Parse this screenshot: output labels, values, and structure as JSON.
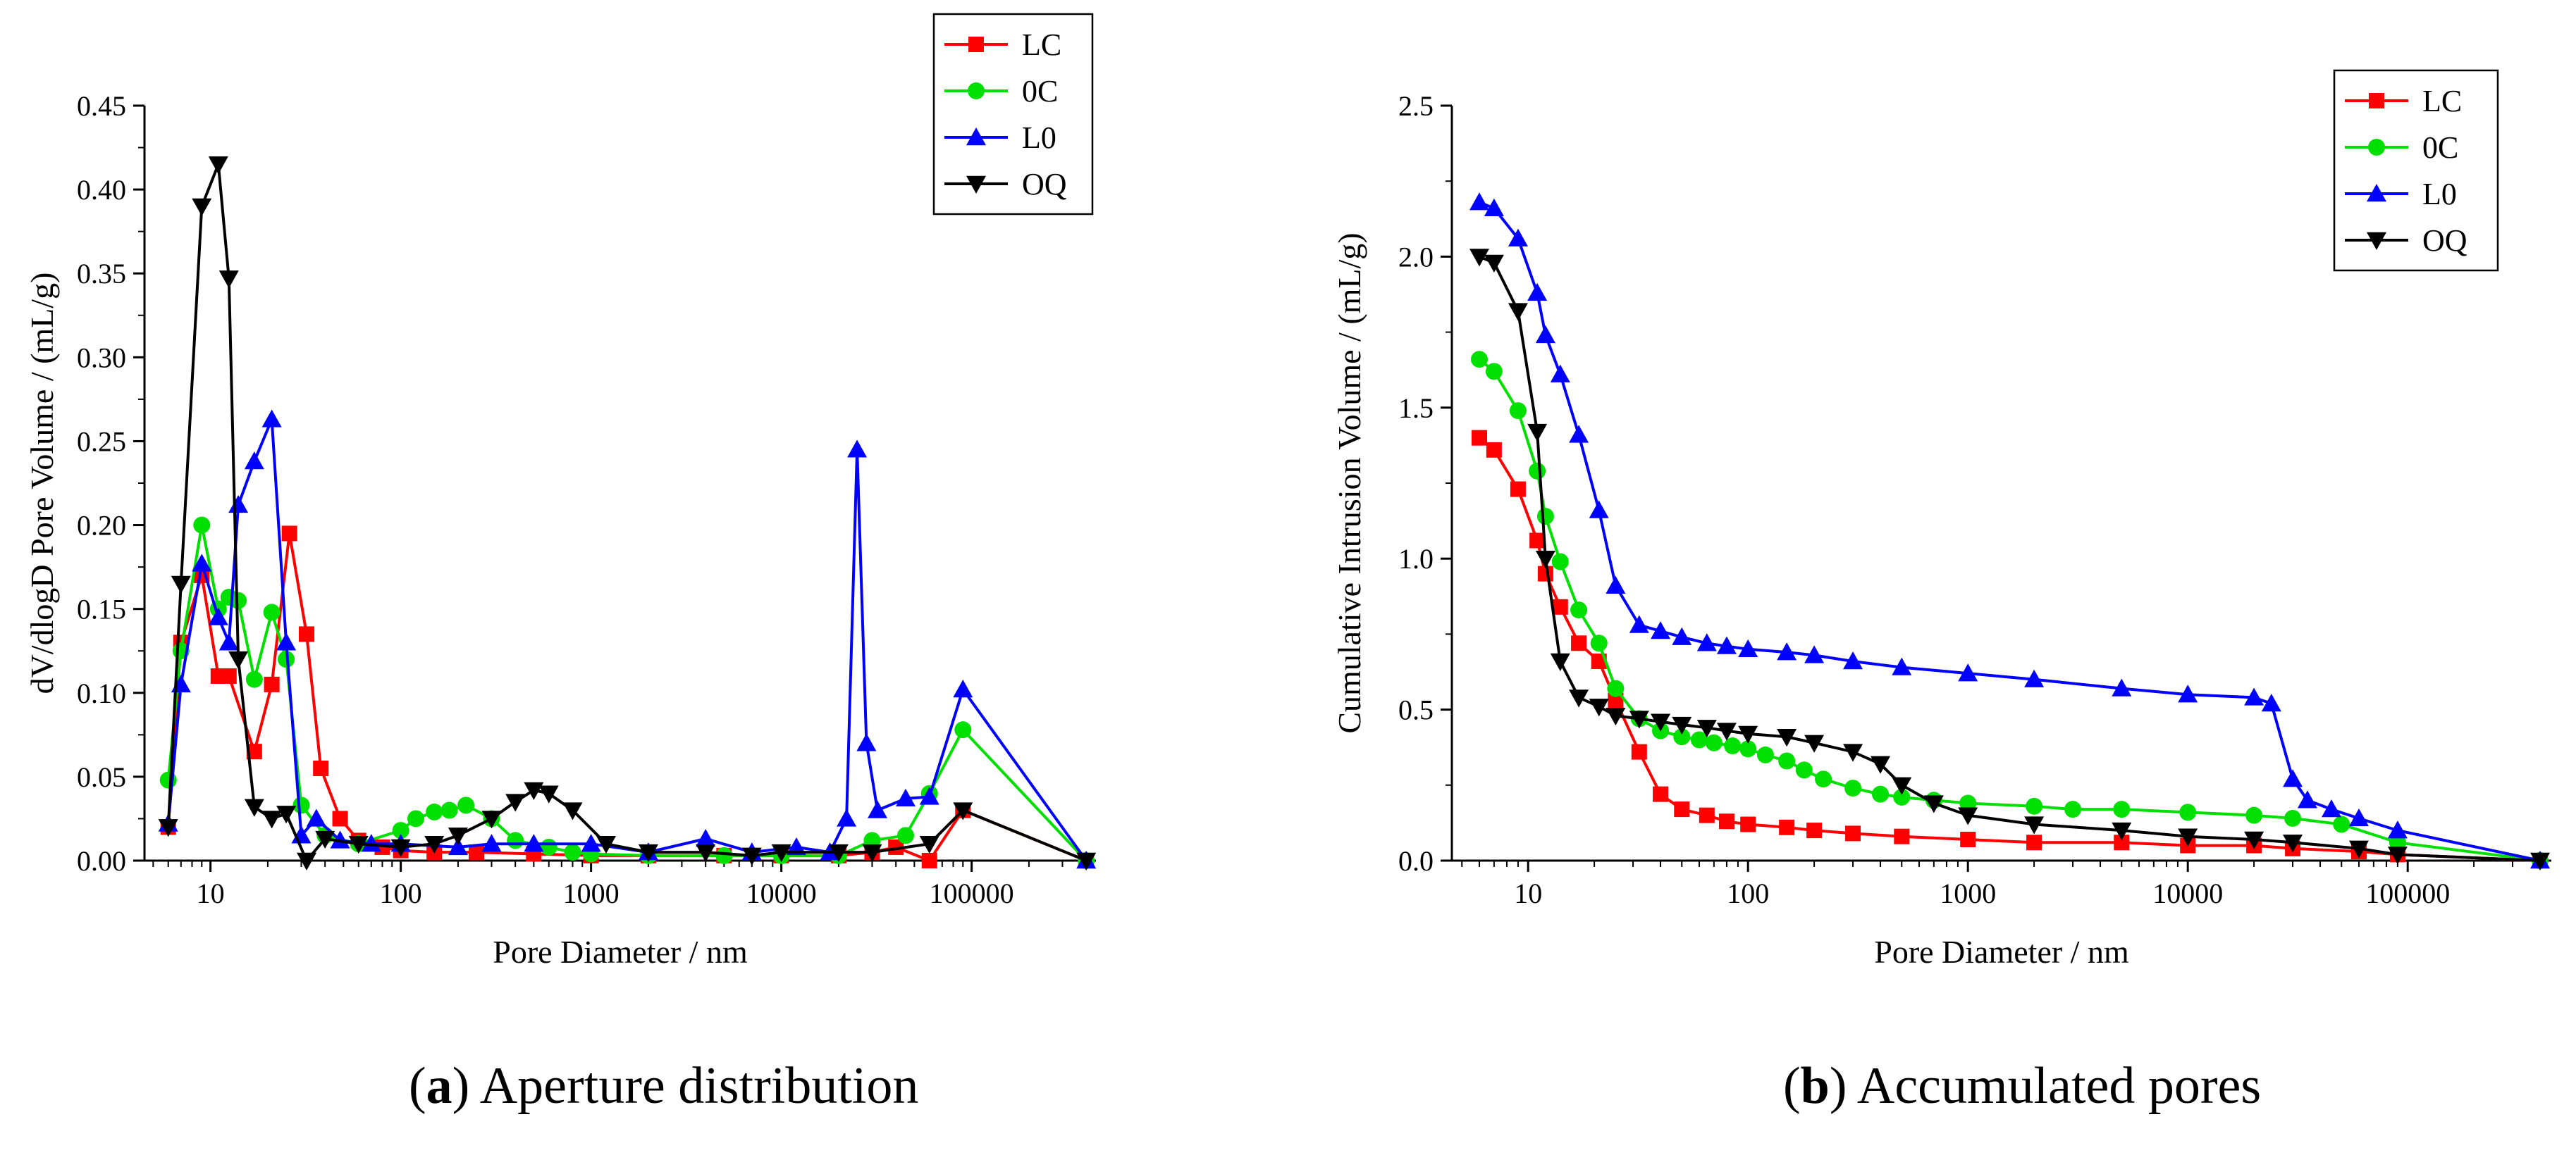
{
  "captions": [
    {
      "tag": "a",
      "text": "Aperture distribution"
    },
    {
      "tag": "b",
      "text": "Accumulated pores"
    }
  ],
  "chart_data": [
    {
      "type": "line",
      "title": "",
      "xlabel": "Pore Diameter / nm",
      "ylabel": "dV/dlogD Pore Volume / (mL/g)",
      "xscale": "log",
      "xlim": [
        4.5,
        450000
      ],
      "ylim": [
        0,
        0.45
      ],
      "xticks": [
        10,
        100,
        1000,
        10000,
        100000
      ],
      "xtick_labels": [
        "10",
        "100",
        "1000",
        "10000",
        "100000"
      ],
      "yticks": [
        0,
        0.05,
        0.1,
        0.15,
        0.2,
        0.25,
        0.3,
        0.35,
        0.4,
        0.45
      ],
      "ytick_labels": [
        "0.00",
        "0.05",
        "0.10",
        "0.15",
        "0.20",
        "0.25",
        "0.30",
        "0.35",
        "0.40",
        "0.45"
      ],
      "legend_position": "top-right",
      "series": [
        {
          "name": "LC",
          "color": "#ff0000",
          "marker": "square",
          "x": [
            6,
            7,
            9,
            11,
            12.5,
            17,
            21,
            26,
            32,
            38,
            48,
            60,
            80,
            100,
            150,
            250,
            500,
            1000,
            2000,
            5000,
            10000,
            20000,
            30000,
            40000,
            60000,
            90000,
            400000
          ],
          "y": [
            0.02,
            0.13,
            0.17,
            0.11,
            0.11,
            0.065,
            0.105,
            0.195,
            0.135,
            0.055,
            0.025,
            0.012,
            0.008,
            0.006,
            0.005,
            0.005,
            0.004,
            0.003,
            0.003,
            0.003,
            0.003,
            0.003,
            0.005,
            0.008,
            0.0,
            0.03,
            0.0
          ]
        },
        {
          "name": "0C",
          "color": "#00e000",
          "marker": "circle",
          "x": [
            6,
            7,
            9,
            11,
            12.5,
            14,
            17,
            21,
            25,
            30,
            40,
            60,
            100,
            120,
            150,
            180,
            220,
            300,
            400,
            600,
            800,
            1000,
            2000,
            5000,
            10000,
            20000,
            30000,
            45000,
            60000,
            90000,
            400000
          ],
          "y": [
            0.048,
            0.125,
            0.2,
            0.15,
            0.157,
            0.155,
            0.108,
            0.148,
            0.12,
            0.033,
            0.015,
            0.01,
            0.018,
            0.025,
            0.029,
            0.03,
            0.033,
            0.025,
            0.012,
            0.008,
            0.005,
            0.004,
            0.003,
            0.003,
            0.003,
            0.003,
            0.012,
            0.015,
            0.04,
            0.078,
            0.0
          ]
        },
        {
          "name": "L0",
          "color": "#0000ff",
          "marker": "triangle-up",
          "x": [
            6,
            7,
            9,
            11,
            12.5,
            14,
            17,
            21,
            25,
            30,
            36,
            48,
            70,
            100,
            200,
            300,
            500,
            1000,
            2000,
            4000,
            7000,
            12000,
            18000,
            22000,
            25000,
            28000,
            32000,
            45000,
            60000,
            90000,
            400000
          ],
          "y": [
            0.022,
            0.105,
            0.177,
            0.145,
            0.13,
            0.212,
            0.238,
            0.263,
            0.13,
            0.015,
            0.025,
            0.012,
            0.01,
            0.01,
            0.008,
            0.01,
            0.01,
            0.01,
            0.005,
            0.013,
            0.005,
            0.008,
            0.005,
            0.025,
            0.245,
            0.07,
            0.03,
            0.037,
            0.038,
            0.102,
            0.0
          ]
        },
        {
          "name": "OQ",
          "color": "#000000",
          "marker": "triangle-down",
          "x": [
            6,
            7,
            9,
            11,
            12.5,
            14,
            17,
            21,
            25,
            32,
            40,
            60,
            100,
            150,
            200,
            300,
            400,
            500,
            600,
            800,
            1200,
            2000,
            4000,
            7000,
            10000,
            20000,
            30000,
            60000,
            90000,
            400000
          ],
          "y": [
            0.02,
            0.165,
            0.39,
            0.415,
            0.347,
            0.12,
            0.032,
            0.025,
            0.028,
            0.0,
            0.013,
            0.01,
            0.008,
            0.01,
            0.015,
            0.025,
            0.035,
            0.042,
            0.04,
            0.03,
            0.01,
            0.005,
            0.005,
            0.003,
            0.005,
            0.005,
            0.005,
            0.01,
            0.03,
            0.0
          ]
        }
      ]
    },
    {
      "type": "line",
      "title": "",
      "xlabel": "Pore Diameter / nm",
      "ylabel": "Cumulative Intrusion Volume / (mL/g)",
      "xscale": "log",
      "xlim": [
        4.5,
        450000
      ],
      "ylim": [
        0,
        2.5
      ],
      "xticks": [
        10,
        100,
        1000,
        10000,
        100000
      ],
      "xtick_labels": [
        "10",
        "100",
        "1000",
        "10000",
        "100000"
      ],
      "yticks": [
        0,
        0.5,
        1.0,
        1.5,
        2.0,
        2.5
      ],
      "ytick_labels": [
        "0.0",
        "0.5",
        "1.0",
        "1.5",
        "2.0",
        "2.5"
      ],
      "legend_position": "top-right",
      "series": [
        {
          "name": "LC",
          "color": "#ff0000",
          "marker": "square",
          "x": [
            6,
            7,
            9,
            11,
            12,
            14,
            17,
            21,
            25,
            32,
            40,
            50,
            65,
            80,
            100,
            150,
            200,
            300,
            500,
            1000,
            2000,
            5000,
            10000,
            20000,
            30000,
            60000,
            90000,
            400000
          ],
          "y": [
            1.4,
            1.36,
            1.23,
            1.06,
            0.95,
            0.84,
            0.72,
            0.66,
            0.53,
            0.36,
            0.22,
            0.17,
            0.15,
            0.13,
            0.12,
            0.11,
            0.1,
            0.09,
            0.08,
            0.07,
            0.06,
            0.06,
            0.05,
            0.05,
            0.04,
            0.03,
            0.02,
            0.0
          ]
        },
        {
          "name": "0C",
          "color": "#00e000",
          "marker": "circle",
          "x": [
            6,
            7,
            9,
            11,
            12,
            14,
            17,
            21,
            25,
            32,
            40,
            50,
            60,
            70,
            85,
            100,
            120,
            150,
            180,
            220,
            300,
            400,
            500,
            700,
            1000,
            2000,
            3000,
            5000,
            10000,
            20000,
            30000,
            50000,
            90000,
            400000
          ],
          "y": [
            1.66,
            1.62,
            1.49,
            1.29,
            1.14,
            0.99,
            0.83,
            0.72,
            0.57,
            0.47,
            0.43,
            0.41,
            0.4,
            0.39,
            0.38,
            0.37,
            0.35,
            0.33,
            0.3,
            0.27,
            0.24,
            0.22,
            0.21,
            0.2,
            0.19,
            0.18,
            0.17,
            0.17,
            0.16,
            0.15,
            0.14,
            0.12,
            0.06,
            0.0
          ]
        },
        {
          "name": "L0",
          "color": "#0000ff",
          "marker": "triangle-up",
          "x": [
            6,
            7,
            9,
            11,
            12,
            14,
            17,
            21,
            25,
            32,
            40,
            50,
            65,
            80,
            100,
            150,
            200,
            300,
            500,
            1000,
            2000,
            5000,
            10000,
            20000,
            24000,
            30000,
            35000,
            45000,
            60000,
            90000,
            400000
          ],
          "y": [
            2.18,
            2.16,
            2.06,
            1.88,
            1.74,
            1.61,
            1.41,
            1.16,
            0.91,
            0.78,
            0.76,
            0.74,
            0.72,
            0.71,
            0.7,
            0.69,
            0.68,
            0.66,
            0.64,
            0.62,
            0.6,
            0.57,
            0.55,
            0.54,
            0.52,
            0.27,
            0.2,
            0.17,
            0.14,
            0.1,
            0.0
          ]
        },
        {
          "name": "OQ",
          "color": "#000000",
          "marker": "triangle-down",
          "x": [
            6,
            7,
            9,
            11,
            12,
            14,
            17,
            21,
            25,
            32,
            40,
            50,
            65,
            80,
            100,
            150,
            200,
            300,
            400,
            500,
            700,
            1000,
            2000,
            5000,
            10000,
            20000,
            30000,
            60000,
            90000,
            400000
          ],
          "y": [
            2.0,
            1.98,
            1.82,
            1.42,
            1.0,
            0.66,
            0.54,
            0.51,
            0.48,
            0.47,
            0.46,
            0.45,
            0.44,
            0.43,
            0.42,
            0.41,
            0.39,
            0.36,
            0.32,
            0.25,
            0.19,
            0.15,
            0.12,
            0.1,
            0.08,
            0.07,
            0.06,
            0.04,
            0.02,
            0.0
          ]
        }
      ]
    }
  ]
}
